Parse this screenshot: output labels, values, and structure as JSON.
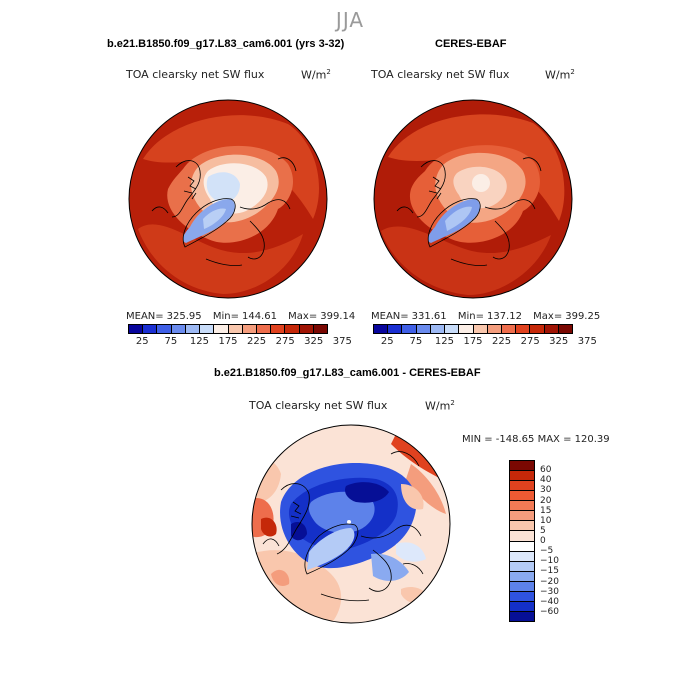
{
  "figure": {
    "season": "JJA",
    "panels": [
      {
        "title": "b.e21.B1850.f09_g17.L83_cam6.001 (yrs 3-32)",
        "variable": "TOA clearsky net SW flux",
        "units_base": "W/m",
        "units_exp": "2",
        "mean_label": "MEAN=",
        "mean": "325.95",
        "min_label": "Min=",
        "min": "144.61",
        "max_label": "Max=",
        "max": "399.14"
      },
      {
        "title": "CERES-EBAF",
        "variable": "TOA clearsky net SW flux",
        "units_base": "W/m",
        "units_exp": "2",
        "mean_label": "MEAN=",
        "mean": "331.61",
        "min_label": "Min=",
        "min": "137.12",
        "max_label": "Max=",
        "max": "399.25"
      },
      {
        "title": "b.e21.B1850.f09_g17.L83_cam6.001 - CERES-EBAF",
        "variable": "TOA clearsky net SW flux",
        "units_base": "W/m",
        "units_exp": "2",
        "minmax": "MIN = -148.65  MAX = 120.39"
      }
    ]
  },
  "colorbar_main": {
    "ticks": [
      "25",
      "75",
      "125",
      "175",
      "225",
      "275",
      "325",
      "375"
    ],
    "colors": [
      "#08059c",
      "#1a2fd2",
      "#3f5fe6",
      "#6a8bee",
      "#9db9f4",
      "#c8dcf9",
      "#fbeee6",
      "#f9c7ad",
      "#f49d7d",
      "#ee6d4c",
      "#e0421f",
      "#c52809",
      "#a01404",
      "#7a0802"
    ]
  },
  "colorbar_diff": {
    "ticks": [
      "60",
      "40",
      "30",
      "20",
      "15",
      "10",
      "5",
      "0",
      "−5",
      "−10",
      "−15",
      "−20",
      "−30",
      "−40",
      "−60"
    ],
    "colors": [
      "#7a0802",
      "#c52809",
      "#e0421f",
      "#ee5a33",
      "#f37a55",
      "#f59c7d",
      "#f9c7ad",
      "#fbe3d6",
      "#ffffff",
      "#dde8fb",
      "#b4cbf6",
      "#8aaaf0",
      "#5d82ea",
      "#2f53e0",
      "#1430c8",
      "#060f96"
    ]
  }
}
